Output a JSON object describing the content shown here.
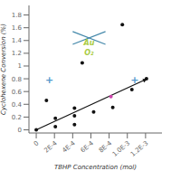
{
  "chart_data": {
    "type": "scatter",
    "xlabel": "TBHP Concentration (mol)",
    "ylabel": "Cyclohexene Conversion (%)",
    "series": [
      {
        "type": "scatter",
        "color": "#111111",
        "x": [
          0.0,
          0.00021,
          0.00042,
          0.00021,
          0.00042,
          0.00063,
          0.00042,
          0.00084,
          0.000505,
          0.00105,
          0.00121,
          0.000112,
          0.000945
        ],
        "values": [
          0.0,
          0.05,
          0.08,
          0.18,
          0.22,
          0.28,
          0.34,
          0.35,
          1.05,
          0.63,
          0.8,
          0.46,
          1.65
        ]
      },
      {
        "type": "scatter",
        "color": "#cc44aa",
        "x": [
          0.00082
        ],
        "values": [
          0.52
        ]
      },
      {
        "type": "arrow",
        "color": "#111111",
        "x": [
          0.0,
          0.00122
        ],
        "values": [
          0.0,
          0.8
        ]
      },
      {
        "type": "line",
        "color": "#4488aa",
        "x": [
          0.0004,
          0.00076
        ],
        "values": [
          1.54,
          1.34
        ]
      },
      {
        "type": "line",
        "color": "#4488aa",
        "x": [
          0.0004,
          0.00076
        ],
        "values": [
          1.34,
          1.54
        ]
      }
    ],
    "annotations": [
      {
        "text": "Au",
        "x": 0.00058,
        "y": 1.36,
        "color": "#aacc44"
      },
      {
        "text": "O₂",
        "x": 0.00058,
        "y": 1.21,
        "color": "#aacc44"
      },
      {
        "text": "+",
        "x": 0.000145,
        "y": 0.78,
        "color": "#5599cc"
      },
      {
        "text": "+",
        "x": 0.00108,
        "y": 0.78,
        "color": "#5599cc"
      }
    ],
    "xlim": [
      -8e-05,
      0.00138
    ],
    "ylim": [
      -0.05,
      1.95
    ],
    "xticks": [
      0,
      {
        "value": 0.0002,
        "label": "2E-4"
      },
      {
        "value": 0.0004,
        "label": "4E-4"
      },
      {
        "value": 0.0006,
        "label": "6E-4"
      },
      {
        "value": 0.0008,
        "label": "8E-4"
      },
      {
        "value": 0.001,
        "label": "1.0E-3"
      },
      {
        "value": 0.0012,
        "label": "1.2E-3"
      }
    ],
    "yticks": [
      0,
      0.2,
      0.4,
      0.6,
      0.8,
      1,
      1.2,
      1.4,
      1.6,
      1.8
    ],
    "grid": false
  }
}
